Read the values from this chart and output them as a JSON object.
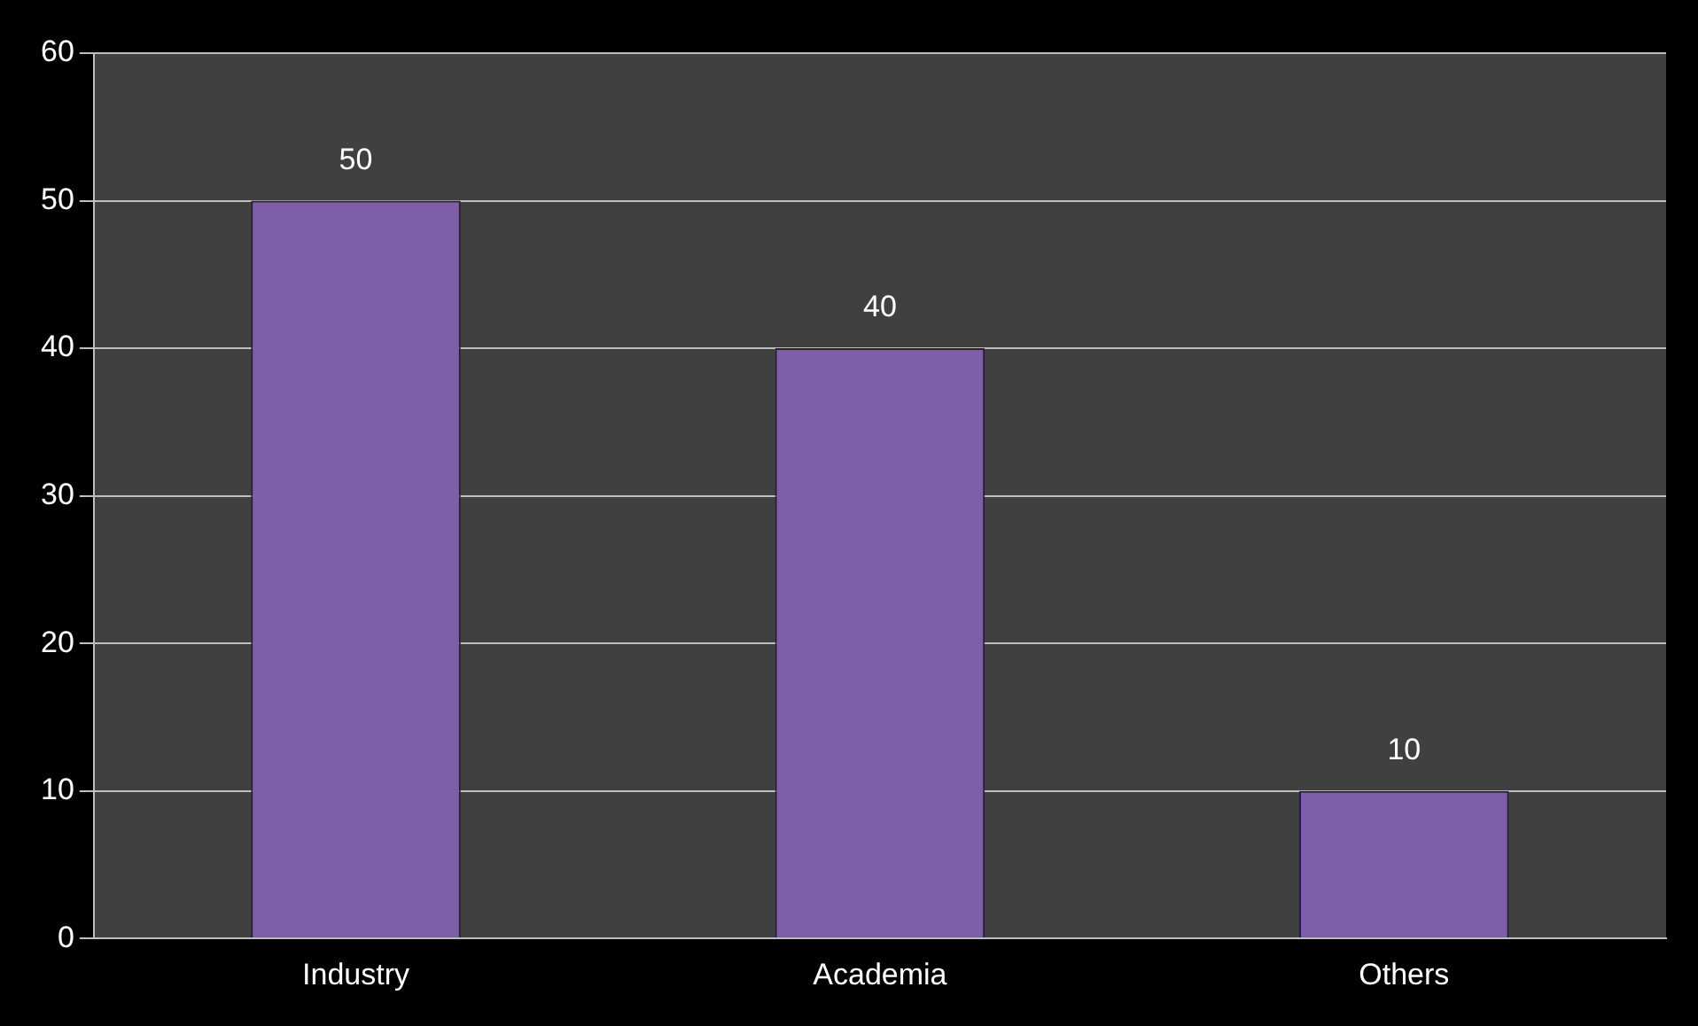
{
  "chart_data": {
    "type": "bar",
    "categories": [
      "Industry",
      "Academia",
      "Others"
    ],
    "values": [
      50,
      40,
      10
    ],
    "color": "#7f5ea8",
    "ylim": [
      0,
      60
    ],
    "yticks": [
      0,
      10,
      20,
      30,
      40,
      50,
      60
    ],
    "grid": "y",
    "data_labels": true,
    "legend": false
  }
}
